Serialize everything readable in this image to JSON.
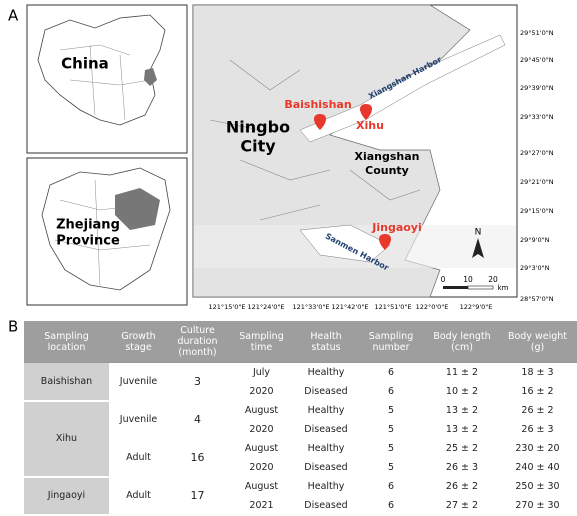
{
  "panel_a": {
    "label": "A",
    "inset_china": "China",
    "inset_zhejiang": [
      "Zhejiang",
      "Province"
    ],
    "city": [
      "Ningbo",
      "City"
    ],
    "county": [
      "Xiangshan",
      "County"
    ],
    "sites": [
      "Baishishan",
      "Xihu",
      "Jingaoyi"
    ],
    "harbors": [
      "Xiangshan Harbor",
      "Sanmen Harbor"
    ],
    "north": "N",
    "scale": {
      "ticks": [
        "0",
        "10",
        "20"
      ],
      "unit": "km"
    },
    "lat_labels": [
      "29°51'0\"N",
      "29°45'0\"N",
      "29°39'0\"N",
      "29°33'0\"N",
      "29°27'0\"N",
      "29°21'0\"N",
      "29°15'0\"N",
      "29°9'0\"N",
      "29°3'0\"N",
      "28°57'0\"N"
    ],
    "lon_labels": [
      "121°15'0\"E",
      "121°24'0\"E",
      "121°33'0\"E",
      "121°42'0\"E",
      "121°51'0\"E",
      "122°0'0\"E",
      "122°9'0\"E"
    ]
  },
  "panel_b": {
    "label": "B",
    "table": {
      "header": [
        "Sampling location",
        "Growth stage",
        "Culture duration (month)",
        "Sampling time",
        "Health status",
        "Sampling number",
        "Body length (cm)",
        "Body weight (g)"
      ],
      "groups": [
        {
          "location": "Baishishan",
          "stages": [
            {
              "stage": "Juvenile",
              "duration": 3,
              "time": [
                "July",
                "2020"
              ],
              "samples": [
                {
                  "health": "Healthy",
                  "number": 6,
                  "length": "11 ± 2",
                  "weight": "18 ± 3"
                },
                {
                  "health": "Diseased",
                  "number": 6,
                  "length": "10 ± 2",
                  "weight": "16 ± 2"
                }
              ]
            }
          ]
        },
        {
          "location": "Xihu",
          "stages": [
            {
              "stage": "Juvenile",
              "duration": 4,
              "time": [
                "August",
                "2020"
              ],
              "samples": [
                {
                  "health": "Healthy",
                  "number": 5,
                  "length": "13 ± 2",
                  "weight": "26 ± 2"
                },
                {
                  "health": "Diseased",
                  "number": 5,
                  "length": "13 ± 2",
                  "weight": "26 ± 3"
                }
              ]
            },
            {
              "stage": "Adult",
              "duration": 16,
              "time": [
                "August",
                "2020"
              ],
              "samples": [
                {
                  "health": "Healthy",
                  "number": 5,
                  "length": "25 ± 2",
                  "weight": "230 ± 20"
                },
                {
                  "health": "Diseased",
                  "number": 5,
                  "length": "26 ± 3",
                  "weight": "240 ± 40"
                }
              ]
            }
          ]
        },
        {
          "location": "Jingaoyi",
          "stages": [
            {
              "stage": "Adult",
              "duration": 17,
              "time": [
                "August",
                "2021"
              ],
              "samples": [
                {
                  "health": "Healthy",
                  "number": 6,
                  "length": "26 ± 2",
                  "weight": "250 ± 30"
                },
                {
                  "health": "Diseased",
                  "number": 6,
                  "length": "27 ± 2",
                  "weight": "270 ± 30"
                }
              ]
            }
          ]
        }
      ]
    }
  }
}
